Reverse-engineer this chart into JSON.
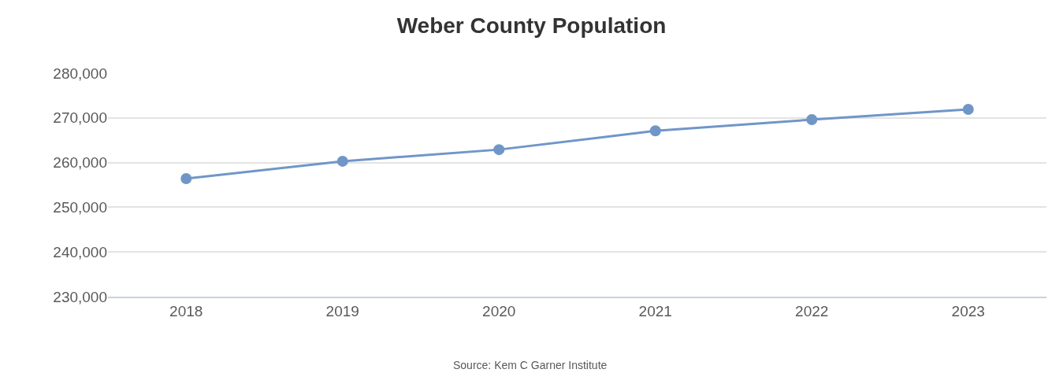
{
  "chart_data": {
    "type": "line",
    "title": "Weber County Population",
    "categories": [
      "2018",
      "2019",
      "2020",
      "2021",
      "2022",
      "2023"
    ],
    "series": [
      {
        "color": "#7096c8",
        "values": [
          256400,
          260300,
          262900,
          267100,
          269600,
          271900
        ]
      }
    ],
    "ylim": [
      230000,
      280000
    ],
    "yticks": [
      {
        "value": 230000,
        "label": "230,000"
      },
      {
        "value": 240000,
        "label": "240,000"
      },
      {
        "value": 250000,
        "label": "250,000"
      },
      {
        "value": 260000,
        "label": "260,000"
      },
      {
        "value": 270000,
        "label": "270,000"
      },
      {
        "value": 280000,
        "label": "280,000"
      }
    ],
    "grid": "y",
    "marker": "circle",
    "line_style": "solid",
    "annotations": [
      "Source: Kem C Garner Institute"
    ]
  }
}
